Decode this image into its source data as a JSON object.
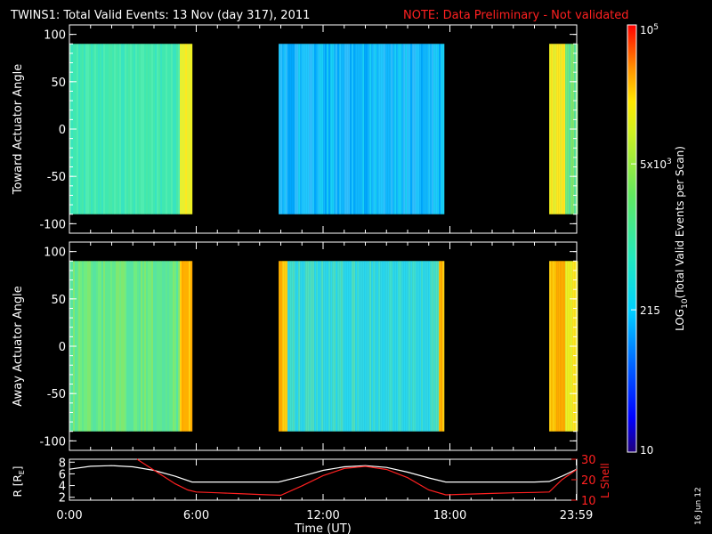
{
  "header": {
    "title": "TWINS1: Total Valid Events: 13 Nov (day 317), 2011",
    "note": "NOTE: Data Preliminary - Not validated"
  },
  "footer": {
    "date_stamp": "16 Jun 12"
  },
  "colors": {
    "background": "#000000",
    "axis": "#ffffff",
    "note": "#ff2020",
    "l_shell_line": "#ff2020",
    "r_line": "#ffffff"
  },
  "chart_data": [
    {
      "type": "heatmap",
      "title": "",
      "ylabel": "Toward Actuator Angle",
      "xlabel": "",
      "ylim": [
        -110,
        110
      ],
      "y_ticks": [
        "100",
        "50",
        "0",
        "-50",
        "-100"
      ],
      "y_tick_values": [
        100,
        50,
        0,
        -50,
        -100
      ],
      "data_y_range": [
        -90,
        90
      ],
      "xlim_hours": [
        0,
        24
      ],
      "data_blocks": [
        {
          "start_hour": 0.0,
          "end_hour": 5.8,
          "level": "cyan-green",
          "edge_level": "yellow"
        },
        {
          "start_hour": 9.9,
          "end_hour": 17.7,
          "level": "cyan-blue",
          "edge_level": "cyan-green"
        },
        {
          "start_hour": 22.7,
          "end_hour": 24.0,
          "level": "yellow",
          "edge_level": "green"
        }
      ]
    },
    {
      "type": "heatmap",
      "title": "",
      "ylabel": "Away Actuator Angle",
      "xlabel": "",
      "ylim": [
        -110,
        110
      ],
      "y_ticks": [
        "100",
        "50",
        "0",
        "-50",
        "-100"
      ],
      "y_tick_values": [
        100,
        50,
        0,
        -50,
        -100
      ],
      "data_y_range": [
        -90,
        90
      ],
      "xlim_hours": [
        0,
        24
      ],
      "data_blocks": [
        {
          "start_hour": 0.0,
          "end_hour": 5.8,
          "level": "green",
          "edge_level": "orange"
        },
        {
          "start_hour": 9.9,
          "end_hour": 17.7,
          "level": "cyan",
          "edge_level": "orange"
        },
        {
          "start_hour": 22.7,
          "end_hour": 24.0,
          "level": "orange",
          "edge_level": "yellow"
        }
      ]
    },
    {
      "type": "line",
      "title": "",
      "xlabel": "Time (UT)",
      "ylabel": "R [R",
      "ylabel_sub": "E",
      "ylabel_close": "]",
      "ylim": [
        1.5,
        8.5
      ],
      "y_ticks": [
        "8",
        "6",
        "4",
        "2"
      ],
      "y_tick_values": [
        8,
        6,
        4,
        2
      ],
      "y2label": "L Shell",
      "y2lim": [
        10,
        30
      ],
      "y2_ticks": [
        "30",
        "20",
        "10"
      ],
      "y2_tick_values": [
        30,
        20,
        10
      ],
      "x_ticks": [
        "0:00",
        "6:00",
        "12:00",
        "18:00",
        "23:59"
      ],
      "x_tick_values": [
        0,
        6,
        12,
        18,
        23.98
      ],
      "series": [
        {
          "name": "R",
          "axis": "left",
          "x": [
            0,
            1,
            2,
            3,
            4,
            5,
            5.8,
            7,
            8,
            9,
            9.9,
            11,
            12,
            13,
            14,
            15,
            16,
            17,
            17.8,
            19,
            20,
            21,
            22,
            22.7,
            23.3,
            24
          ],
          "y": [
            6.8,
            7.3,
            7.4,
            7.2,
            6.6,
            5.6,
            4.6,
            4.6,
            4.6,
            4.6,
            4.6,
            5.6,
            6.6,
            7.2,
            7.4,
            7.1,
            6.3,
            5.3,
            4.6,
            4.6,
            4.6,
            4.6,
            4.6,
            4.7,
            5.6,
            6.8
          ]
        },
        {
          "name": "L Shell",
          "axis": "right",
          "x": [
            3.2,
            3.8,
            4.4,
            5.0,
            5.6,
            6.0,
            7,
            8,
            9,
            10.0,
            11,
            12,
            13,
            14,
            15,
            16,
            17,
            17.8,
            19,
            20,
            21,
            22,
            22.7,
            23.3,
            24
          ],
          "y": [
            30,
            26,
            22,
            18,
            15,
            14,
            13.6,
            13.2,
            12.8,
            12.4,
            17,
            22,
            25.5,
            26.5,
            25,
            21,
            15,
            12.6,
            13,
            13.3,
            13.6,
            13.8,
            14,
            20,
            25
          ]
        }
      ]
    }
  ],
  "colorbar": {
    "label_prefix": "LOG",
    "label_sub": "10",
    "label_rest": "(Total Valid  Events per Scan)",
    "ticks": [
      {
        "base": "10",
        "exp": "5",
        "value": 100000
      },
      {
        "base": "5x10",
        "exp": "3",
        "value": 5000
      },
      {
        "base": "215",
        "exp": "",
        "value": 215
      },
      {
        "base": "10",
        "exp": "",
        "value": 10
      }
    ],
    "scale": "log",
    "range": [
      10,
      100000
    ]
  }
}
